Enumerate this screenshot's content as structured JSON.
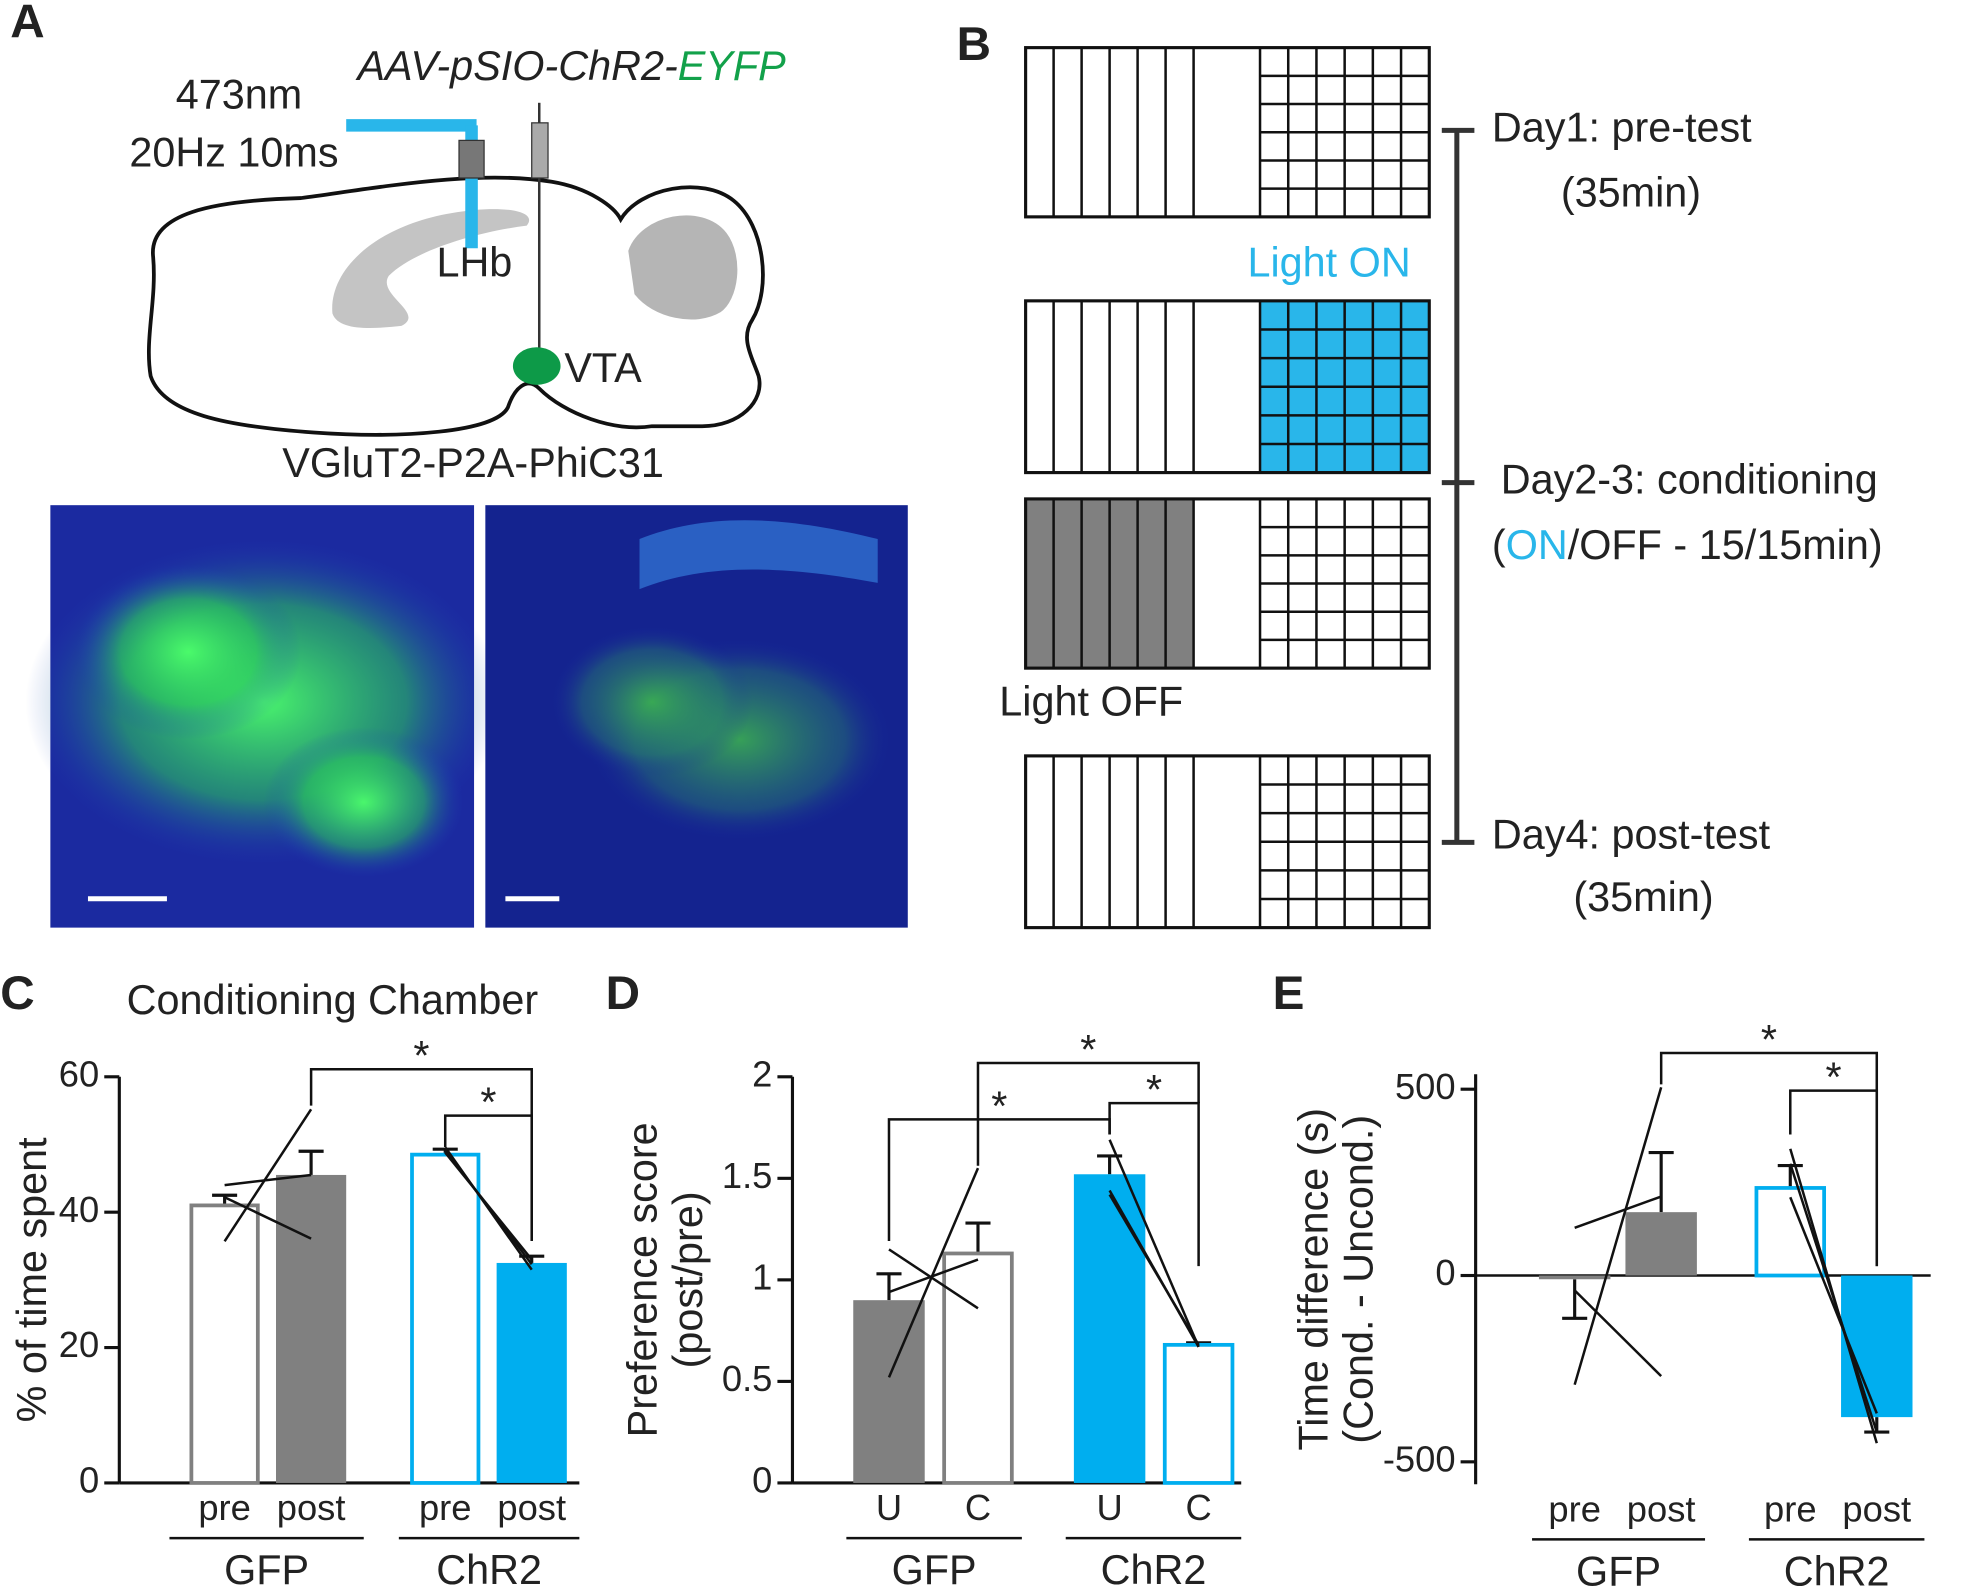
{
  "panel_labels": [
    "A",
    "B",
    "C",
    "D",
    "E"
  ],
  "panel_a": {
    "virus_prefix": "AAV-pSIO-ChR2-",
    "virus_suffix": "EYFP",
    "wavelength": "473nm",
    "stimulation": "20Hz 10ms",
    "lhb": "LHb",
    "vta": "VTA",
    "mouse_line": "VGluT2-P2A-PhiC31"
  },
  "panel_b": {
    "light_on": "Light ON",
    "light_off": "Light OFF",
    "day1": "Day1: pre-test",
    "day1_duration": "(35min)",
    "day23": "Day2-3: conditioning",
    "day23_open": "(",
    "day23_on": "ON",
    "day23_rest": "/OFF - 15/15min)",
    "day4": "Day4: post-test",
    "day4_duration": "(35min)"
  },
  "chart_data": [
    {
      "type": "bar",
      "title": "Conditioning Chamber",
      "ylabel": [
        "% of time spent"
      ],
      "categories": [
        "pre",
        "post",
        "pre",
        "post"
      ],
      "groups": [
        "GFP",
        "ChR2"
      ],
      "values": [
        41,
        45.5,
        48.5,
        32.5
      ],
      "errors": [
        1.5,
        3.5,
        0.8,
        1
      ],
      "colors": [
        "#808080",
        "#808080",
        "#00aeef",
        "#00aeef"
      ],
      "filled": [
        false,
        true,
        false,
        true
      ],
      "lines": [
        [
          35.7,
          55.2
        ],
        [
          44,
          45.5
        ],
        [
          42.2,
          36.1
        ],
        [
          49.6,
          31.5
        ],
        [
          49.2,
          32.3
        ],
        [
          48.8,
          33
        ]
      ],
      "annotations": [
        "*",
        "*"
      ],
      "ylim": [
        0,
        60
      ],
      "yticks": [
        0,
        20,
        40,
        60
      ]
    },
    {
      "type": "bar",
      "ylabel": [
        "Preference score",
        "(post/pre)"
      ],
      "categories": [
        "U",
        "C",
        "U",
        "C"
      ],
      "groups": [
        "GFP",
        "ChR2"
      ],
      "values": [
        0.9,
        1.13,
        1.52,
        0.68
      ],
      "errors": [
        0.13,
        0.15,
        0.09,
        0.01
      ],
      "colors": [
        "#808080",
        "#808080",
        "#00aeef",
        "#00aeef"
      ],
      "filled": [
        true,
        false,
        true,
        false
      ],
      "lines": [
        [
          0.52,
          1.55
        ],
        [
          1.15,
          0.86
        ],
        [
          0.94,
          1.1
        ],
        [
          1.69,
          0.67
        ],
        [
          1.44,
          0.67
        ],
        [
          1.42,
          0.68
        ]
      ],
      "annotations": [
        "*",
        "*",
        "*"
      ],
      "ylim": [
        0,
        2
      ],
      "yticks": [
        0,
        0.5,
        1,
        1.5,
        2
      ]
    },
    {
      "type": "bar",
      "ylabel": [
        "Time difference (s)",
        "(Cond. - Uncond.)"
      ],
      "categories": [
        "pre",
        "post",
        "pre",
        "post"
      ],
      "groups": [
        "GFP",
        "ChR2"
      ],
      "values": [
        -10,
        170,
        235,
        -380
      ],
      "errors": [
        105,
        160,
        60,
        40
      ],
      "colors": [
        "#808080",
        "#808080",
        "#00aeef",
        "#00aeef"
      ],
      "filled": [
        true,
        true,
        false,
        true
      ],
      "lines": [
        [
          -293,
          505
        ],
        [
          128,
          212
        ],
        [
          -40,
          -270
        ],
        [
          340,
          -450
        ],
        [
          300,
          -420
        ],
        [
          210,
          -370
        ]
      ],
      "annotations": [
        "*",
        "*"
      ],
      "ylim": [
        -560,
        540
      ],
      "yticks": [
        -500,
        0,
        500
      ]
    }
  ]
}
